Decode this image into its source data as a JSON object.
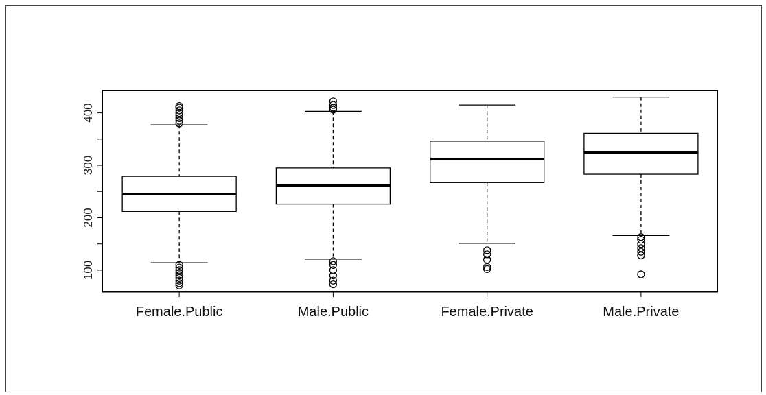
{
  "chart_data": {
    "type": "box",
    "categories": [
      "Female.Public",
      "Male.Public",
      "Female.Private",
      "Male.Private"
    ],
    "boxes": [
      {
        "low": 114,
        "q1": 212,
        "median": 245,
        "q3": 279,
        "high": 377,
        "outliers": [
          71,
          75,
          80,
          85,
          90,
          95,
          100,
          105,
          110,
          380,
          385,
          390,
          395,
          400,
          405,
          410,
          413
        ]
      },
      {
        "low": 121,
        "q1": 226,
        "median": 262,
        "q3": 295,
        "high": 403,
        "outliers": [
          73,
          80,
          90,
          100,
          110,
          117,
          406,
          410,
          415,
          422
        ]
      },
      {
        "low": 151,
        "q1": 267,
        "median": 312,
        "q3": 346,
        "high": 415,
        "outliers": [
          102,
          106,
          120,
          130,
          138
        ]
      },
      {
        "low": 166,
        "q1": 283,
        "median": 325,
        "q3": 361,
        "high": 430,
        "outliers": [
          92,
          128,
          135,
          142,
          150,
          158,
          163
        ]
      }
    ],
    "ylim": [
      58,
      444
    ],
    "yticks": [
      100,
      {
        "value": 150,
        "label": null
      },
      200,
      {
        "value": 250,
        "label": null
      },
      300,
      {
        "value": 350,
        "label": null
      },
      400
    ],
    "grid": false
  }
}
